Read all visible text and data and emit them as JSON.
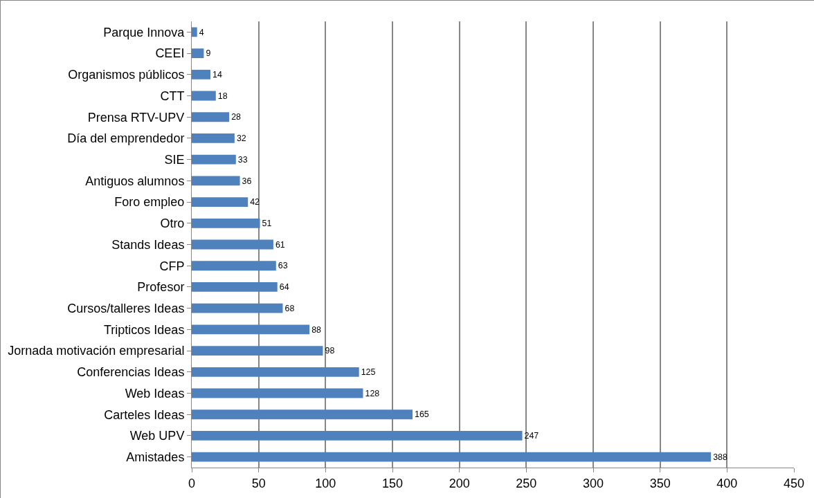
{
  "chart_data": {
    "type": "bar",
    "orientation": "horizontal",
    "categories": [
      "Parque Innova",
      "CEEI",
      "Organismos públicos",
      "CTT",
      "Prensa RTV-UPV",
      "Día del emprendedor",
      "SIE",
      "Antiguos alumnos",
      "Foro empleo",
      "Otro",
      "Stands Ideas",
      "CFP",
      "Profesor",
      "Cursos/talleres Ideas",
      "Tripticos Ideas",
      "Jornada motivación empresarial",
      "Conferencias Ideas",
      "Web Ideas",
      "Carteles Ideas",
      "Web UPV",
      "Amistades"
    ],
    "values": [
      4,
      9,
      14,
      18,
      28,
      32,
      33,
      36,
      42,
      51,
      61,
      63,
      64,
      68,
      88,
      98,
      125,
      128,
      165,
      247,
      388
    ],
    "color": "#4f81bd",
    "xlim": [
      0,
      450
    ],
    "xticks": [
      0,
      50,
      100,
      150,
      200,
      250,
      300,
      350,
      400,
      450
    ],
    "grid": "x",
    "data_labels": true
  }
}
